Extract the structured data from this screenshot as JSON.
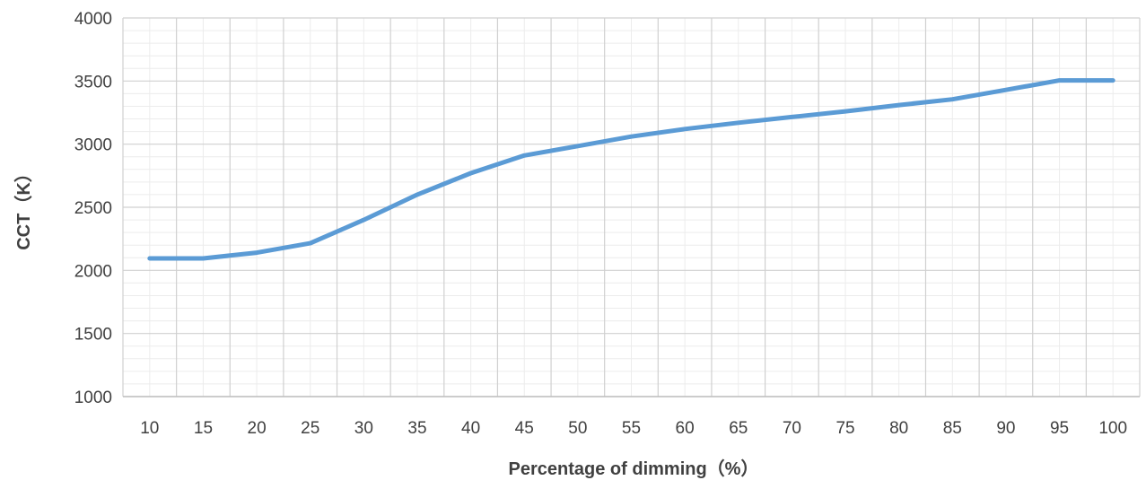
{
  "chart_data": {
    "type": "line",
    "title": "",
    "xlabel": "Percentage of dimming（%）",
    "ylabel": "CCT（K）",
    "categories": [
      "10",
      "15",
      "20",
      "25",
      "30",
      "35",
      "40",
      "45",
      "50",
      "55",
      "60",
      "65",
      "70",
      "75",
      "80",
      "85",
      "90",
      "95",
      "100"
    ],
    "series": [
      {
        "values": [
          2095,
          2095,
          2140,
          2215,
          2400,
          2600,
          2770,
          2910,
          2985,
          3060,
          3120,
          3170,
          3215,
          3260,
          3310,
          3355,
          3430,
          3505,
          3505
        ],
        "color": "#5b9bd5"
      }
    ],
    "y_ticks": [
      "1000",
      "1500",
      "2000",
      "2500",
      "3000",
      "3500",
      "4000"
    ],
    "ylim": [
      1000,
      4000
    ],
    "grid": true,
    "minor_grid": true,
    "legend": "none"
  }
}
